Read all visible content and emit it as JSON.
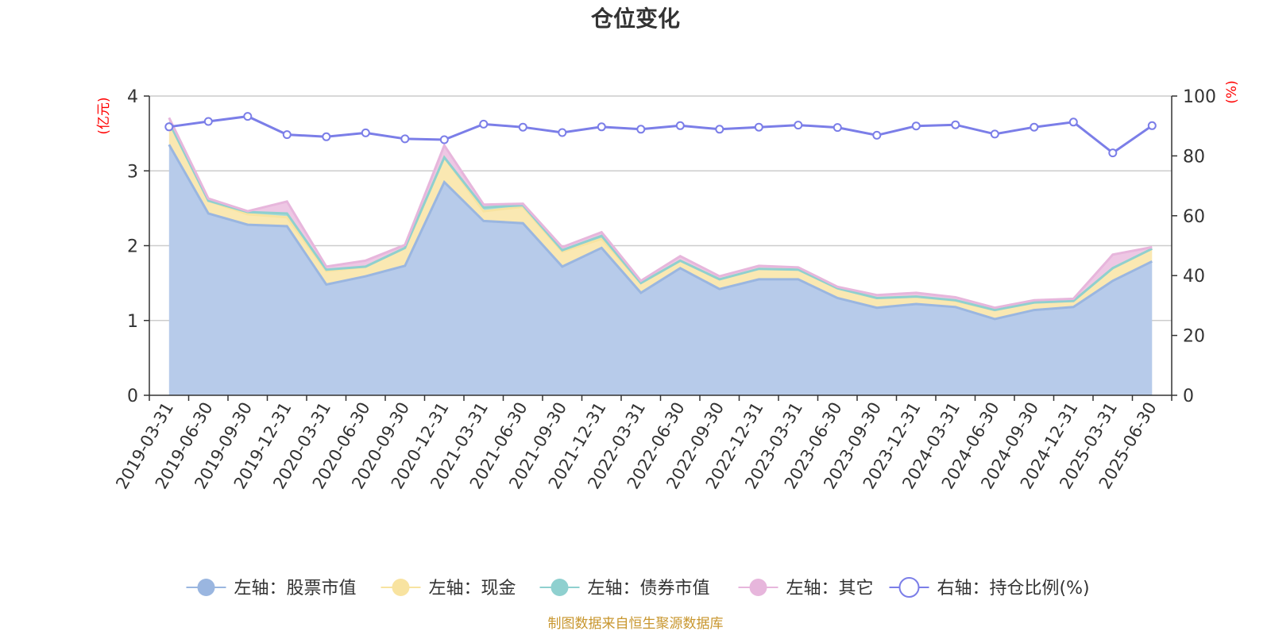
{
  "chart_data": {
    "type": "area",
    "title": "仓位变化",
    "left_axis_unit": "(亿元)",
    "right_axis_unit": "(%)",
    "left_ylim": [
      0,
      4
    ],
    "left_yticks": [
      "0",
      "1",
      "2",
      "3",
      "4"
    ],
    "right_ylim": [
      0,
      100
    ],
    "right_yticks": [
      "0",
      "20",
      "40",
      "60",
      "80",
      "100"
    ],
    "grid": true,
    "legend_position": "bottom",
    "categories": [
      "2019-03-31",
      "2019-06-30",
      "2019-09-30",
      "2019-12-31",
      "2020-03-31",
      "2020-06-30",
      "2020-09-30",
      "2020-12-31",
      "2021-03-31",
      "2021-06-30",
      "2021-09-30",
      "2021-12-31",
      "2022-03-31",
      "2022-06-30",
      "2022-09-30",
      "2022-12-31",
      "2023-03-31",
      "2023-06-30",
      "2023-09-30",
      "2023-12-31",
      "2024-03-31",
      "2024-06-30",
      "2024-09-30",
      "2024-12-31",
      "2025-03-31",
      "2025-06-30"
    ],
    "series": [
      {
        "name": "左轴：股票市值",
        "axis": "left",
        "stacked": true,
        "color": "#9ab6e0",
        "fill": "#b7cbea",
        "values": [
          3.35,
          2.43,
          2.28,
          2.26,
          1.48,
          1.59,
          1.73,
          2.85,
          2.33,
          2.3,
          1.72,
          1.97,
          1.37,
          1.7,
          1.42,
          1.55,
          1.55,
          1.3,
          1.17,
          1.22,
          1.18,
          1.02,
          1.14,
          1.18,
          1.53,
          1.79
        ]
      },
      {
        "name": "左轴：现金",
        "axis": "left",
        "stacked": true,
        "color": "#f8e3a0",
        "fill": "#fae8b2",
        "values": [
          0.3,
          0.17,
          0.14,
          0.12,
          0.18,
          0.13,
          0.24,
          0.33,
          0.13,
          0.22,
          0.2,
          0.12,
          0.13,
          0.1,
          0.13,
          0.14,
          0.13,
          0.13,
          0.13,
          0.1,
          0.08,
          0.12,
          0.1,
          0.08,
          0.17,
          0.17
        ]
      },
      {
        "name": "左轴：债券市值",
        "axis": "left",
        "stacked": true,
        "color": "#8fd0cf",
        "fill": "#a8dcda",
        "values": [
          0,
          0,
          0.03,
          0.05,
          0.02,
          0,
          0,
          0,
          0.05,
          0.02,
          0.02,
          0.04,
          0,
          0,
          0,
          0,
          0,
          0,
          0,
          0,
          0.01,
          0,
          0,
          0,
          0,
          0
        ]
      },
      {
        "name": "左轴：其它",
        "axis": "left",
        "stacked": true,
        "color": "#e7b6dc",
        "fill": "#eec7e4",
        "values": [
          0.06,
          0.03,
          0.01,
          0.16,
          0.04,
          0.08,
          0.04,
          0.16,
          0.04,
          0.02,
          0.04,
          0.05,
          0.03,
          0.06,
          0.04,
          0.04,
          0.03,
          0.02,
          0.04,
          0.05,
          0.04,
          0.03,
          0.03,
          0.03,
          0.18,
          0.02
        ]
      },
      {
        "name": "右轴：持仓比例(%)",
        "axis": "right",
        "stacked": false,
        "color": "#7b7ee8",
        "values": [
          89.7,
          91.5,
          93.2,
          87.1,
          86.4,
          87.7,
          85.7,
          85.4,
          90.6,
          89.6,
          87.8,
          89.7,
          88.9,
          90.1,
          88.9,
          89.6,
          90.3,
          89.5,
          86.9,
          90.0,
          90.4,
          87.3,
          89.6,
          91.3,
          81.0,
          90.1
        ]
      }
    ]
  },
  "source_text": "制图数据来自恒生聚源数据库"
}
